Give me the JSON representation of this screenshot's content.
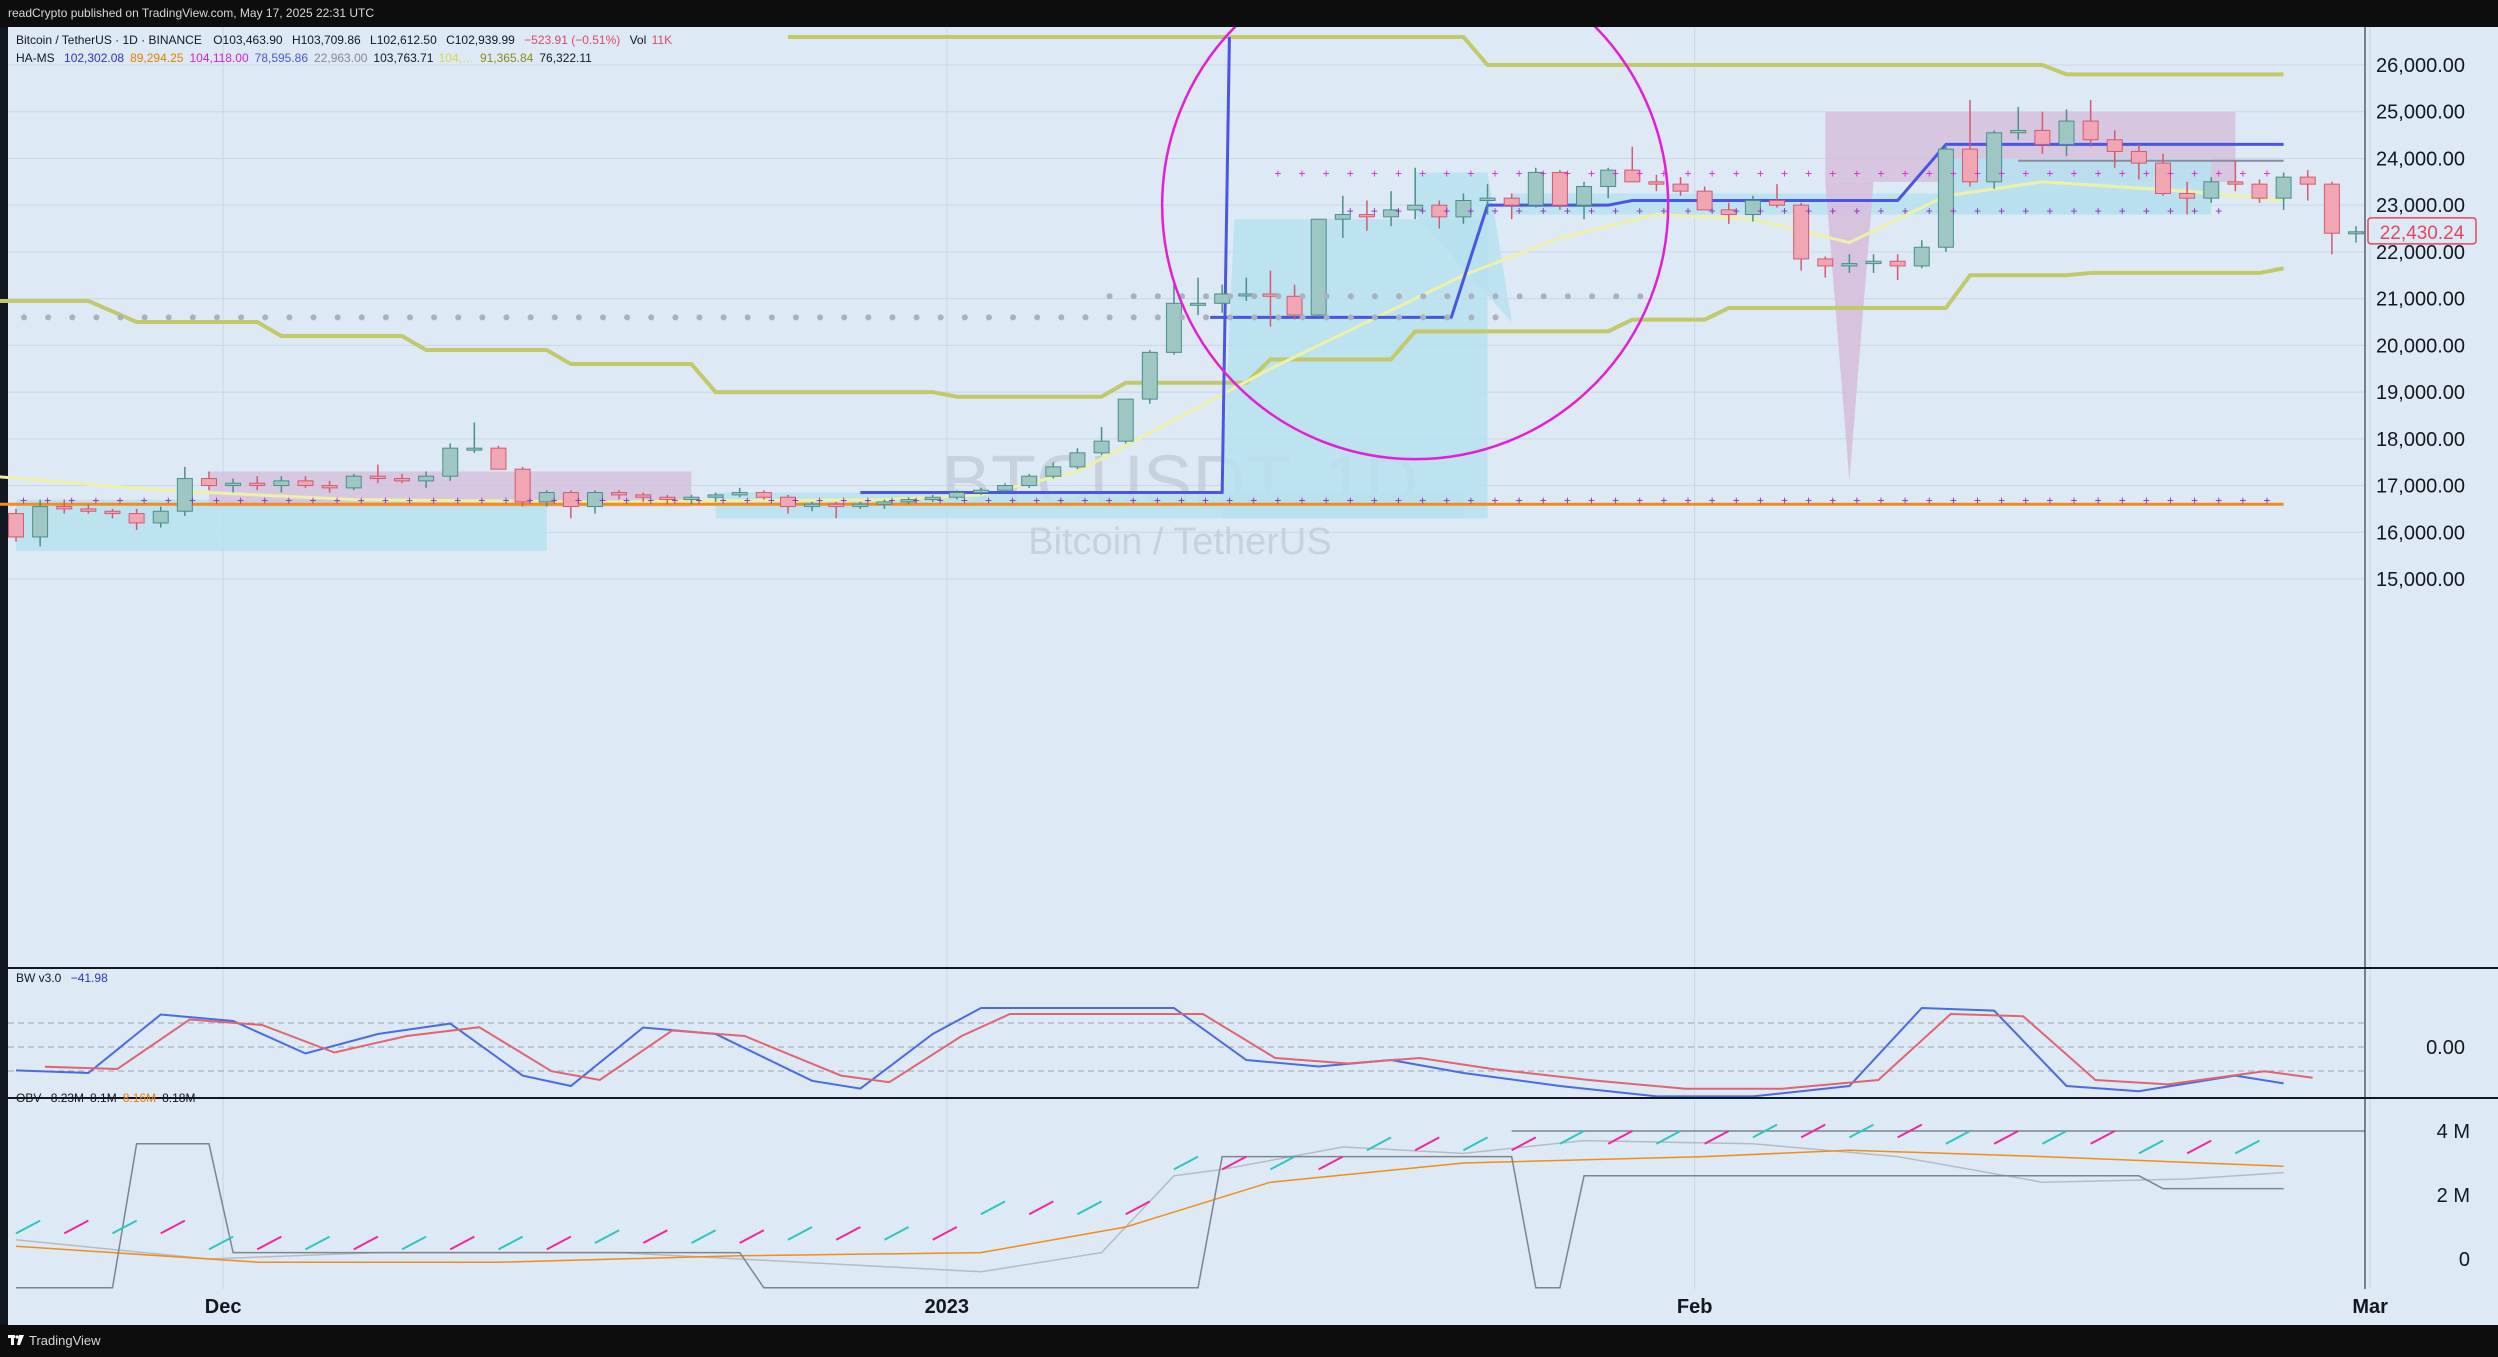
{
  "header": {
    "publisher_line": "readCrypto published on TradingView.com, May 17, 2025 22:31 UTC"
  },
  "footer": {
    "brand": "TradingView"
  },
  "colors": {
    "background": "#dde9f5",
    "up_candle": "#9ec7c4",
    "down_candle": "#f0a7b3",
    "hams_blue": "#4a56e2",
    "olive_line": "#c1c96a",
    "yellow_ma": "#eef0a8",
    "cloud_cyan": "#b7e0ee",
    "cloud_purple": "#d6bfdc",
    "magenta": "#e21fd6",
    "orange_line": "#f28c1a",
    "bw_red": "#e2646f",
    "bw_blue": "#4a6be2",
    "obv_teal": "#2fc6bd",
    "obv_pink": "#f0279b"
  },
  "main_pane": {
    "symbol_line": {
      "label": "Bitcoin / TetherUS · 1D · BINANCE",
      "open": "O103,463.90",
      "high": "H103,709.86",
      "low": "L102,612.50",
      "close": "C102,939.99",
      "change": "−523.91 (−0.51%)",
      "volume_label": "Vol",
      "volume": "11K"
    },
    "indicator_line": {
      "name": "HA-MS",
      "values": [
        "102,302.08",
        "89,294.25",
        "104,118.00",
        "78,595.86",
        "22,963.00",
        "103,763.71",
        "104,…",
        "91,365.84",
        "76,322.11"
      ],
      "colors": [
        "#2a36c4",
        "#e67e00",
        "#d21fd6",
        "#4a56e2",
        "#888888",
        "#131722",
        "#d8d84a",
        "#8a8a1a",
        "#131722"
      ]
    },
    "watermark_symbol": "BTCUSDT, 1D",
    "watermark_name": "Bitcoin / TetherUS",
    "price_axis": [
      "26,000.00",
      "25,000.00",
      "24,000.00",
      "23,000.00",
      "22,000.00",
      "21,000.00",
      "20,000.00",
      "19,000.00",
      "18,000.00",
      "17,000.00",
      "16,000.00",
      "15,000.00"
    ],
    "last_price_badge": "22,430.24"
  },
  "bw_pane": {
    "label": "BW v3.0",
    "value": "−41.98",
    "axis": "0.00"
  },
  "obv_pane": {
    "label": "OBV",
    "values": [
      "8.23M",
      "8.1M",
      "8.16M",
      "8.18M"
    ],
    "axis": [
      "4 M",
      "2 M",
      "0"
    ]
  },
  "time_axis": [
    "Dec",
    "2023",
    "Feb",
    "Mar"
  ],
  "chart_data": {
    "type": "candlestick",
    "title": "Bitcoin / TetherUS · 1D · BINANCE",
    "ylim": [
      14400,
      26600
    ],
    "x_range": [
      "2022-11-21",
      "2023-03-06"
    ],
    "grid": true,
    "candles": [
      [
        16400,
        16500,
        15800,
        15900
      ],
      [
        15900,
        16700,
        15700,
        16550
      ],
      [
        16550,
        16700,
        16400,
        16500
      ],
      [
        16500,
        16600,
        16400,
        16450
      ],
      [
        16450,
        16500,
        16300,
        16400
      ],
      [
        16400,
        16500,
        16050,
        16200
      ],
      [
        16200,
        16550,
        16100,
        16450
      ],
      [
        16450,
        17400,
        16350,
        17150
      ],
      [
        17150,
        17300,
        16900,
        17000
      ],
      [
        17000,
        17150,
        16850,
        17050
      ],
      [
        17050,
        17200,
        16900,
        17000
      ],
      [
        17000,
        17200,
        16850,
        17100
      ],
      [
        17100,
        17200,
        16950,
        17000
      ],
      [
        17000,
        17100,
        16850,
        16950
      ],
      [
        16950,
        17250,
        16900,
        17200
      ],
      [
        17200,
        17450,
        17050,
        17150
      ],
      [
        17150,
        17250,
        17050,
        17100
      ],
      [
        17100,
        17300,
        16950,
        17200
      ],
      [
        17200,
        17900,
        17100,
        17800
      ],
      [
        17800,
        18350,
        17700,
        17800
      ],
      [
        17800,
        17850,
        17350,
        17350
      ],
      [
        17350,
        17400,
        16550,
        16650
      ],
      [
        16650,
        16900,
        16550,
        16850
      ],
      [
        16850,
        16900,
        16300,
        16550
      ],
      [
        16550,
        16900,
        16400,
        16850
      ],
      [
        16850,
        16900,
        16700,
        16800
      ],
      [
        16800,
        16850,
        16650,
        16750
      ],
      [
        16750,
        16800,
        16600,
        16700
      ],
      [
        16700,
        16800,
        16600,
        16750
      ],
      [
        16750,
        16850,
        16650,
        16800
      ],
      [
        16800,
        16950,
        16750,
        16850
      ],
      [
        16850,
        16900,
        16700,
        16750
      ],
      [
        16750,
        16800,
        16400,
        16550
      ],
      [
        16550,
        16650,
        16450,
        16600
      ],
      [
        16600,
        16650,
        16300,
        16550
      ],
      [
        16550,
        16650,
        16500,
        16600
      ],
      [
        16600,
        16700,
        16500,
        16650
      ],
      [
        16650,
        16750,
        16600,
        16700
      ],
      [
        16700,
        16800,
        16650,
        16750
      ],
      [
        16750,
        16900,
        16700,
        16850
      ],
      [
        16850,
        16950,
        16800,
        16900
      ],
      [
        16900,
        17050,
        16850,
        17000
      ],
      [
        17000,
        17250,
        16950,
        17200
      ],
      [
        17200,
        17500,
        17150,
        17400
      ],
      [
        17400,
        17800,
        17350,
        17700
      ],
      [
        17700,
        18250,
        17650,
        17950
      ],
      [
        17950,
        18800,
        17900,
        18850
      ],
      [
        18850,
        19900,
        18750,
        19850
      ],
      [
        19850,
        21300,
        19800,
        20900
      ],
      [
        20900,
        21450,
        20650,
        20900
      ],
      [
        20900,
        21300,
        20700,
        21100
      ],
      [
        21100,
        21450,
        20950,
        21100
      ],
      [
        21100,
        21600,
        20400,
        21050
      ],
      [
        21050,
        21300,
        20550,
        20650
      ],
      [
        20650,
        22700,
        20600,
        22700
      ],
      [
        22700,
        23200,
        22300,
        22800
      ],
      [
        22800,
        23100,
        22450,
        22750
      ],
      [
        22750,
        23300,
        22550,
        22900
      ],
      [
        22900,
        23800,
        22700,
        23000
      ],
      [
        23000,
        23100,
        22500,
        22750
      ],
      [
        22750,
        23250,
        22600,
        23100
      ],
      [
        23100,
        23450,
        22800,
        23150
      ],
      [
        23150,
        23250,
        22700,
        23000
      ],
      [
        23000,
        23800,
        22950,
        23700
      ],
      [
        23700,
        23750,
        22900,
        23000
      ],
      [
        23000,
        23500,
        22700,
        23400
      ],
      [
        23400,
        23800,
        23150,
        23750
      ],
      [
        23750,
        24250,
        23600,
        23500
      ],
      [
        23500,
        23650,
        23300,
        23450
      ],
      [
        23450,
        23600,
        23200,
        23300
      ],
      [
        23300,
        23400,
        22900,
        22900
      ],
      [
        22900,
        23050,
        22600,
        22800
      ],
      [
        22800,
        23200,
        22650,
        23100
      ],
      [
        23100,
        23450,
        22950,
        23000
      ],
      [
        23000,
        23050,
        21600,
        21850
      ],
      [
        21850,
        21900,
        21450,
        21700
      ],
      [
        21700,
        21950,
        21550,
        21750
      ],
      [
        21750,
        21950,
        21550,
        21800
      ],
      [
        21800,
        21950,
        21400,
        21700
      ],
      [
        21700,
        22250,
        21650,
        22100
      ],
      [
        22100,
        24300,
        22000,
        24200
      ],
      [
        24200,
        25250,
        23400,
        23500
      ],
      [
        23500,
        24600,
        23350,
        24550
      ],
      [
        24550,
        25100,
        24400,
        24600
      ],
      [
        24600,
        25000,
        24100,
        24300
      ],
      [
        24300,
        25050,
        24050,
        24800
      ],
      [
        24800,
        25250,
        24250,
        24400
      ],
      [
        24400,
        24600,
        23800,
        24150
      ],
      [
        24150,
        24300,
        23550,
        23900
      ],
      [
        23900,
        24100,
        23200,
        23250
      ],
      [
        23250,
        23500,
        22800,
        23150
      ],
      [
        23150,
        23600,
        23050,
        23500
      ],
      [
        23500,
        23950,
        23300,
        23450
      ],
      [
        23450,
        23550,
        23050,
        23150
      ],
      [
        23150,
        23700,
        22900,
        23600
      ],
      [
        23600,
        23750,
        23100,
        23450
      ],
      [
        23450,
        23500,
        21950,
        22400
      ],
      [
        22400,
        22550,
        22200,
        22430
      ]
    ]
  }
}
